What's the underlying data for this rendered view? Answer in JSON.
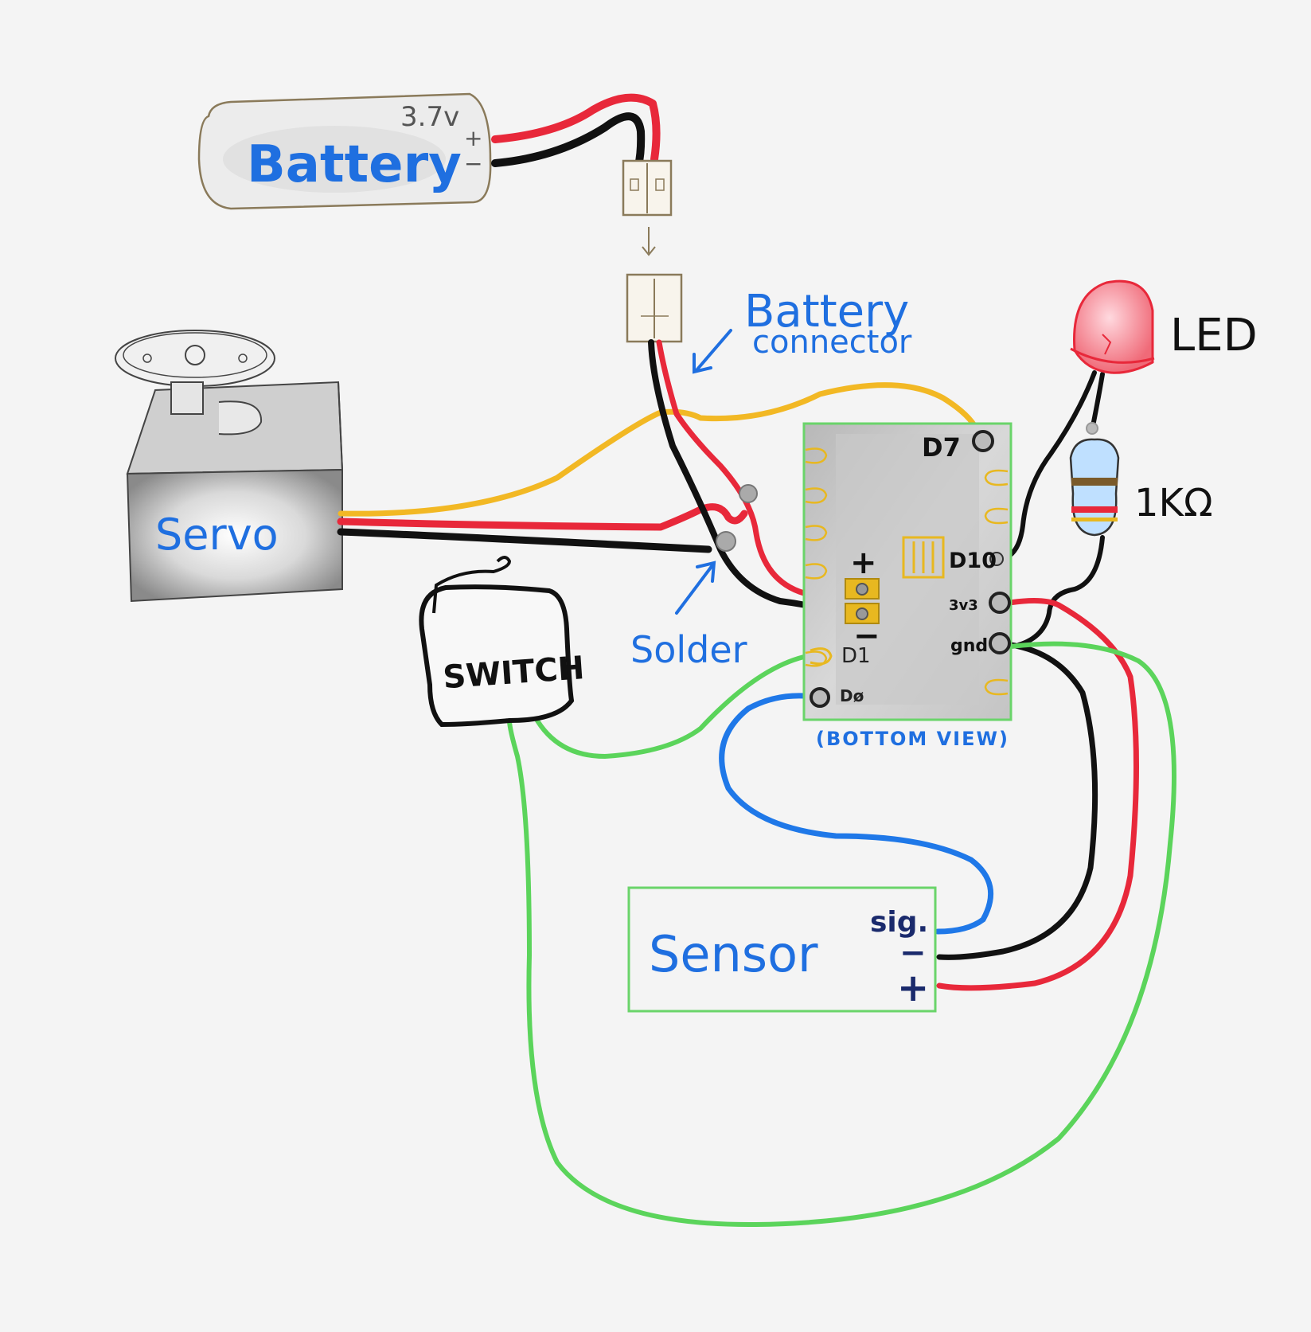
{
  "labels": {
    "battery": "Battery",
    "battery_voltage": "3.7v",
    "battery_plus": "+",
    "battery_minus": "−",
    "battery_connector_line1": "Battery",
    "battery_connector_line2": "connector",
    "servo": "Servo",
    "switch": "SWITCH",
    "solder": "Solder",
    "led": "LED",
    "resistor": "1KΩ",
    "bottom_view": "(BOTTOM VIEW)",
    "sensor": "Sensor",
    "sensor_sig": "sig.",
    "sensor_minus": "−",
    "sensor_plus": "+",
    "pad_plus": "+",
    "pad_minus": "−"
  },
  "board_pins": {
    "d7": "D7",
    "d10": "D10",
    "v3": "3v3",
    "gnd": "gnd",
    "d1": "D1",
    "d0": "Dø"
  },
  "colors": {
    "background": "#f4f4f4",
    "wire_red": "#e8283a",
    "wire_black": "#111111",
    "wire_yellow": "#f2b824",
    "wire_green": "#5bd45b",
    "wire_blue": "#1f78e8",
    "label_blue": "#1f6fe0",
    "label_navy": "#1a2a6c",
    "board_outline": "#6ad46a",
    "pad_gold": "#e8b820",
    "led_red": "#f05a6a"
  }
}
